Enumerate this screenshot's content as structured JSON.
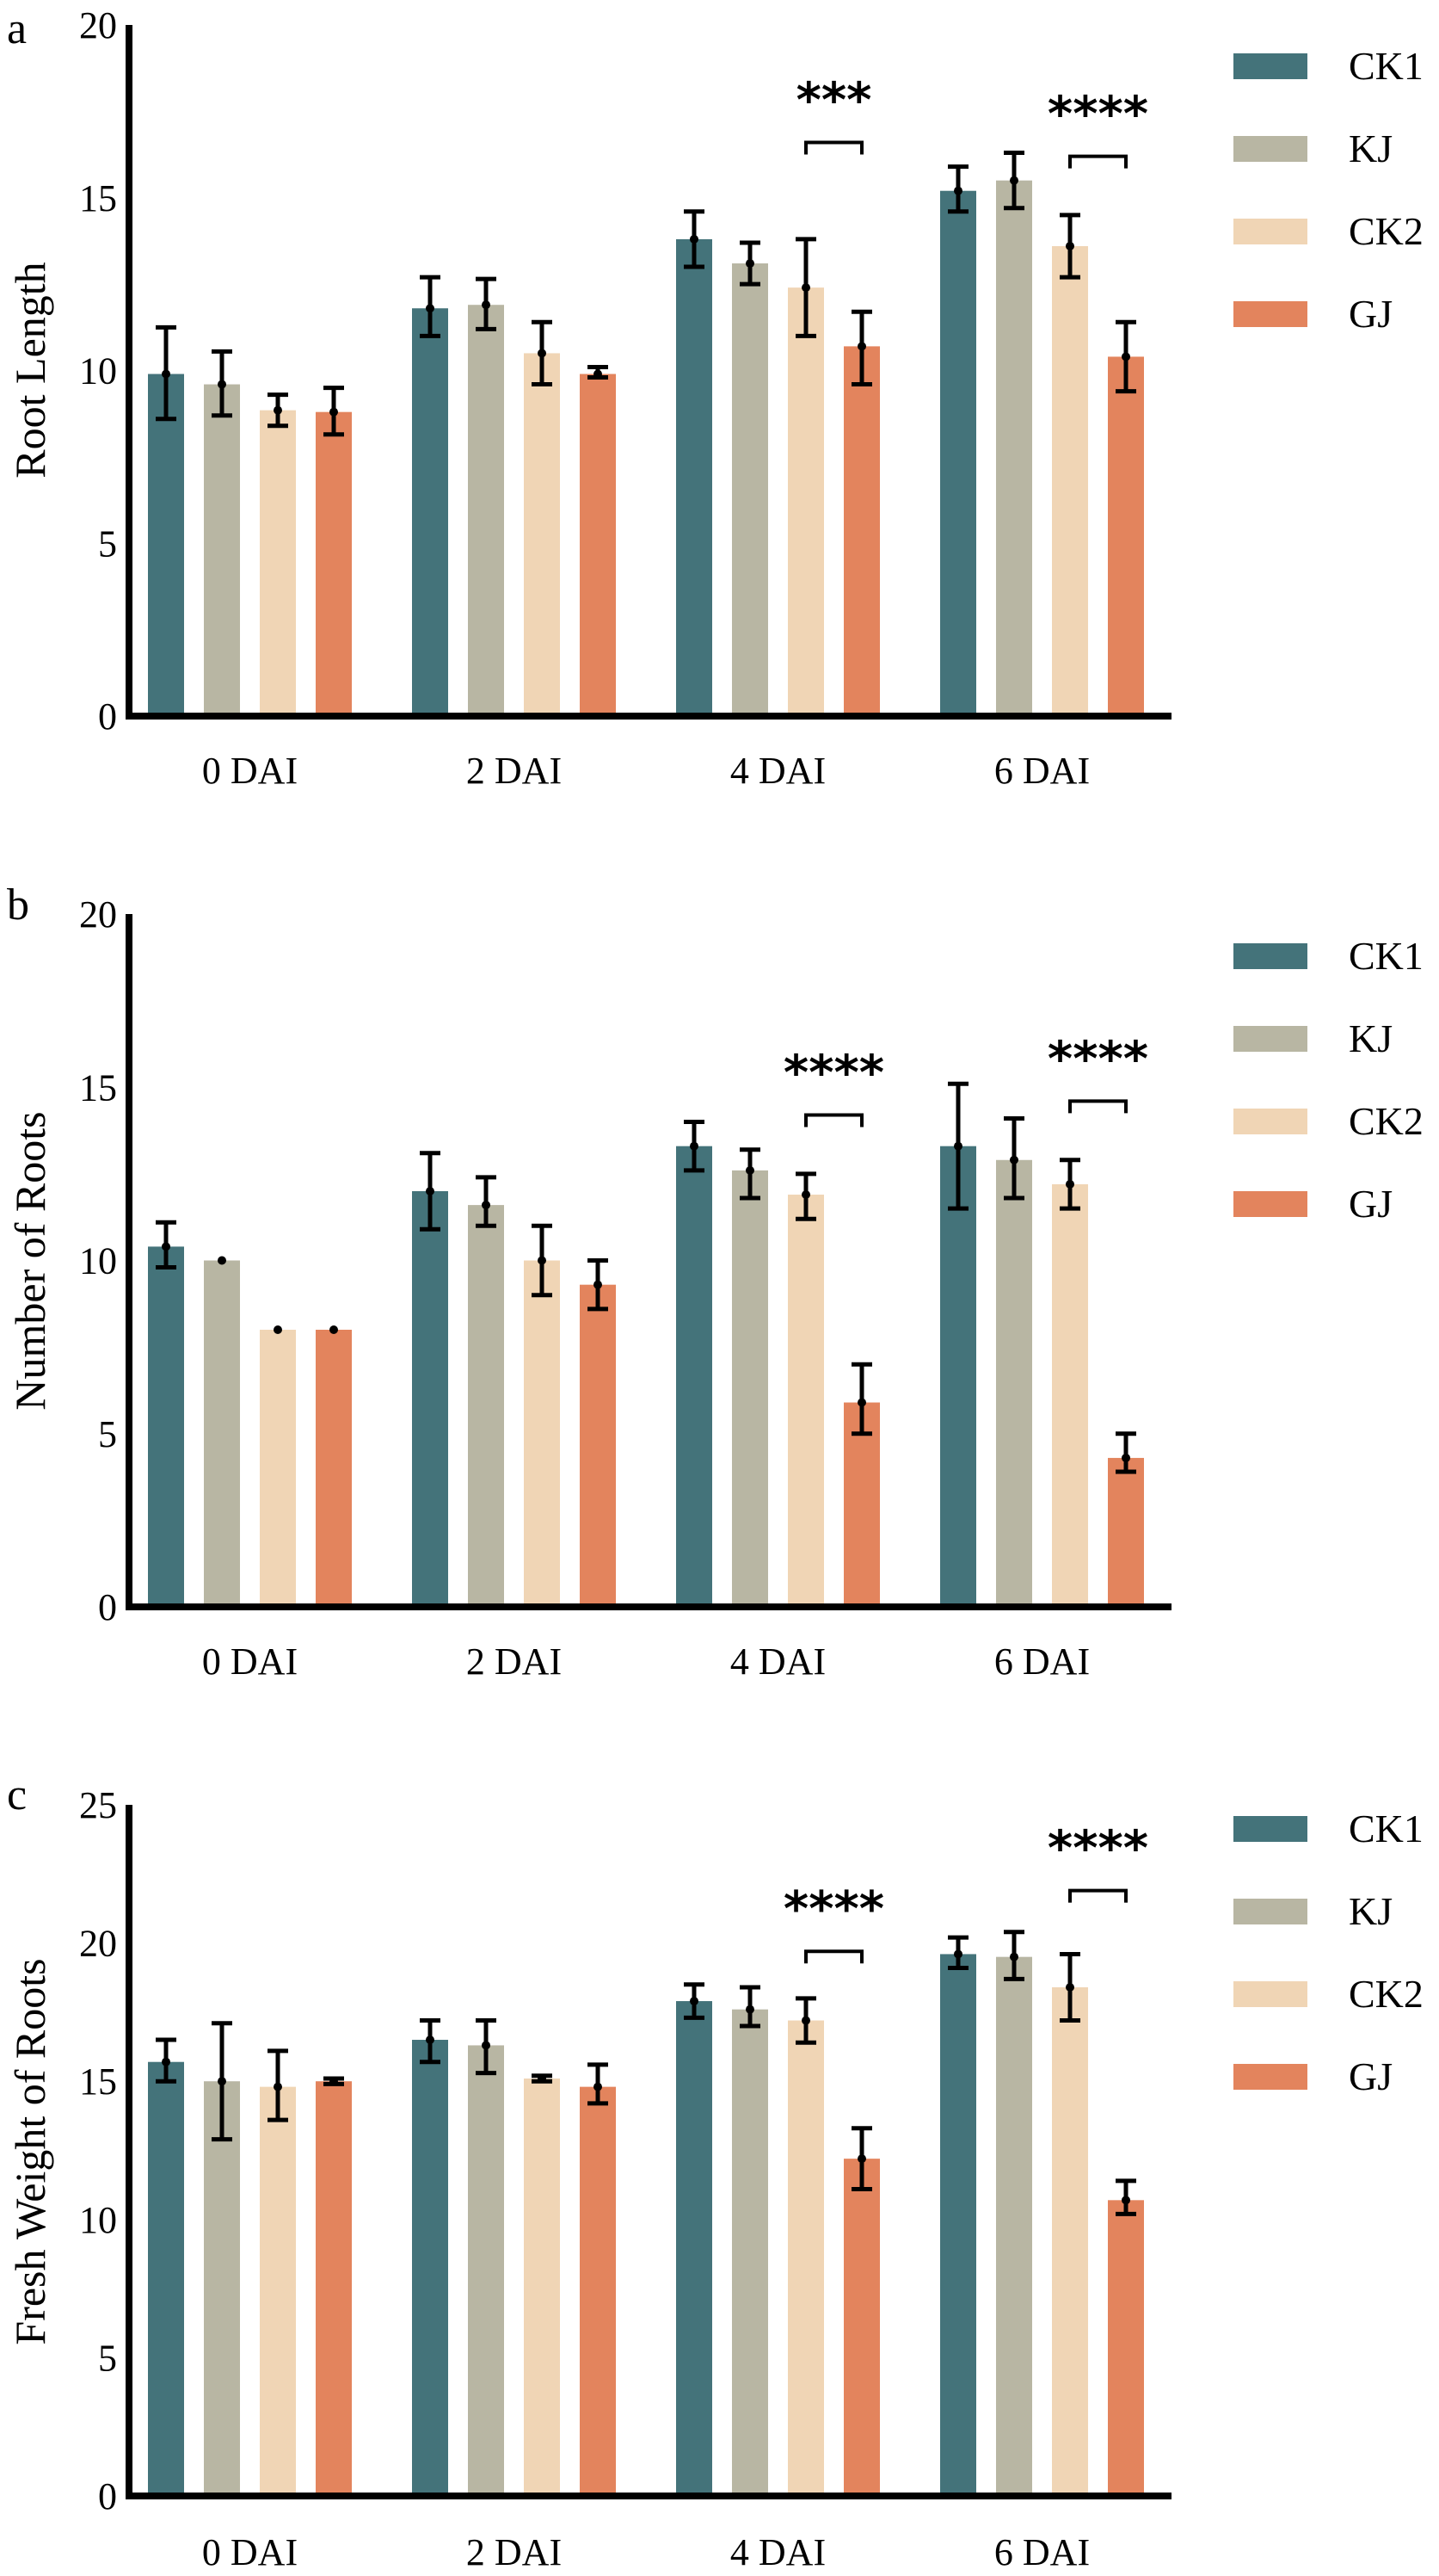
{
  "chart_data": [
    {
      "type": "bar",
      "panel": "a",
      "title": "",
      "xlabel": "",
      "ylabel": "Root Length",
      "ylim": [
        0,
        20
      ],
      "yticks": [
        0,
        5,
        10,
        15,
        20
      ],
      "categories": [
        "0 DAI",
        "2 DAI",
        "4 DAI",
        "6 DAI"
      ],
      "legend_position": "right",
      "grid": false,
      "series": [
        {
          "name": "CK1",
          "color": "#44737A",
          "values": [
            9.9,
            11.8,
            13.8,
            15.2
          ],
          "err_low": [
            8.6,
            11.0,
            13.0,
            14.6
          ],
          "err_high": [
            11.25,
            12.7,
            14.6,
            15.9
          ]
        },
        {
          "name": "KJ",
          "color": "#B8B6A3",
          "values": [
            9.6,
            11.9,
            13.1,
            15.5
          ],
          "err_low": [
            8.7,
            11.2,
            12.5,
            14.7
          ],
          "err_high": [
            10.55,
            12.65,
            13.7,
            16.3
          ]
        },
        {
          "name": "CK2",
          "color": "#F0D5B5",
          "values": [
            8.85,
            10.5,
            12.4,
            13.6
          ],
          "err_low": [
            8.4,
            9.6,
            11.0,
            12.7
          ],
          "err_high": [
            9.3,
            11.4,
            13.8,
            14.5
          ]
        },
        {
          "name": "GJ",
          "color": "#E3845D",
          "values": [
            8.8,
            9.9,
            10.7,
            10.4
          ],
          "err_low": [
            8.15,
            9.8,
            9.6,
            9.4
          ],
          "err_high": [
            9.5,
            10.1,
            11.7,
            11.4
          ]
        }
      ],
      "annotations": [
        {
          "category": "4 DAI",
          "between": [
            "CK2",
            "GJ"
          ],
          "text": "***",
          "bracket_y": 16.6
        },
        {
          "category": "6 DAI",
          "between": [
            "CK2",
            "GJ"
          ],
          "text": "****",
          "bracket_y": 16.2
        }
      ]
    },
    {
      "type": "bar",
      "panel": "b",
      "title": "",
      "xlabel": "",
      "ylabel": "Number of Roots",
      "ylim": [
        0,
        20
      ],
      "yticks": [
        0,
        5,
        10,
        15,
        20
      ],
      "categories": [
        "0 DAI",
        "2 DAI",
        "4 DAI",
        "6 DAI"
      ],
      "legend_position": "right",
      "grid": false,
      "series": [
        {
          "name": "CK1",
          "color": "#44737A",
          "values": [
            10.4,
            12.0,
            13.3,
            13.3
          ],
          "err_low": [
            9.8,
            10.9,
            12.6,
            11.5
          ],
          "err_high": [
            11.1,
            13.1,
            14.0,
            15.1
          ]
        },
        {
          "name": "KJ",
          "color": "#B8B6A3",
          "values": [
            10.0,
            11.6,
            12.6,
            12.9
          ],
          "err_low": [
            10.0,
            11.0,
            11.8,
            11.8
          ],
          "err_high": [
            10.0,
            12.4,
            13.2,
            14.1
          ]
        },
        {
          "name": "CK2",
          "color": "#F0D5B5",
          "values": [
            8.0,
            10.0,
            11.9,
            12.2
          ],
          "err_low": [
            8.0,
            9.0,
            11.2,
            11.5
          ],
          "err_high": [
            8.0,
            11.0,
            12.5,
            12.9
          ]
        },
        {
          "name": "GJ",
          "color": "#E3845D",
          "values": [
            8.0,
            9.3,
            5.9,
            4.3
          ],
          "err_low": [
            8.0,
            8.6,
            5.0,
            3.9
          ],
          "err_high": [
            8.0,
            10.0,
            7.0,
            5.0
          ]
        }
      ],
      "annotations": [
        {
          "category": "4 DAI",
          "between": [
            "CK2",
            "GJ"
          ],
          "text": "****",
          "bracket_y": 14.2
        },
        {
          "category": "6 DAI",
          "between": [
            "CK2",
            "GJ"
          ],
          "text": "****",
          "bracket_y": 14.6
        }
      ]
    },
    {
      "type": "bar",
      "panel": "c",
      "title": "",
      "xlabel": "",
      "ylabel": "Fresh Weight of Roots",
      "ylim": [
        0,
        25
      ],
      "yticks": [
        0,
        5,
        10,
        15,
        20,
        25
      ],
      "categories": [
        "0 DAI",
        "2 DAI",
        "4 DAI",
        "6 DAI"
      ],
      "legend_position": "right",
      "grid": false,
      "series": [
        {
          "name": "CK1",
          "color": "#44737A",
          "values": [
            15.7,
            16.5,
            17.9,
            19.6
          ],
          "err_low": [
            15.0,
            15.7,
            17.3,
            19.1
          ],
          "err_high": [
            16.5,
            17.2,
            18.5,
            20.2
          ]
        },
        {
          "name": "KJ",
          "color": "#B8B6A3",
          "values": [
            15.0,
            16.3,
            17.6,
            19.5
          ],
          "err_low": [
            12.9,
            15.3,
            17.0,
            18.7
          ],
          "err_high": [
            17.1,
            17.2,
            18.4,
            20.4
          ]
        },
        {
          "name": "CK2",
          "color": "#F0D5B5",
          "values": [
            14.8,
            15.1,
            17.2,
            18.4
          ],
          "err_low": [
            13.6,
            15.0,
            16.4,
            17.2
          ],
          "err_high": [
            16.1,
            15.2,
            18.0,
            19.6
          ]
        },
        {
          "name": "GJ",
          "color": "#E3845D",
          "values": [
            15.0,
            14.8,
            12.2,
            10.7
          ],
          "err_low": [
            14.9,
            14.2,
            11.1,
            10.2
          ],
          "err_high": [
            15.1,
            15.6,
            13.3,
            11.4
          ]
        }
      ],
      "annotations": [
        {
          "category": "4 DAI",
          "between": [
            "CK2",
            "GJ"
          ],
          "text": "****",
          "bracket_y": 19.7
        },
        {
          "category": "6 DAI",
          "between": [
            "CK2",
            "GJ"
          ],
          "text": "****",
          "bracket_y": 21.9
        }
      ]
    }
  ],
  "panels": {
    "a": {
      "letter": "a",
      "ylabel": "Root Length"
    },
    "b": {
      "letter": "b",
      "ylabel": "Number of Roots"
    },
    "c": {
      "letter": "c",
      "ylabel": "Fresh Weight of Roots"
    }
  },
  "legend": [
    {
      "label": "CK1",
      "color": "#44737A"
    },
    {
      "label": "KJ",
      "color": "#B8B6A3"
    },
    {
      "label": "CK2",
      "color": "#F0D5B5"
    },
    {
      "label": "GJ",
      "color": "#E3845D"
    }
  ]
}
